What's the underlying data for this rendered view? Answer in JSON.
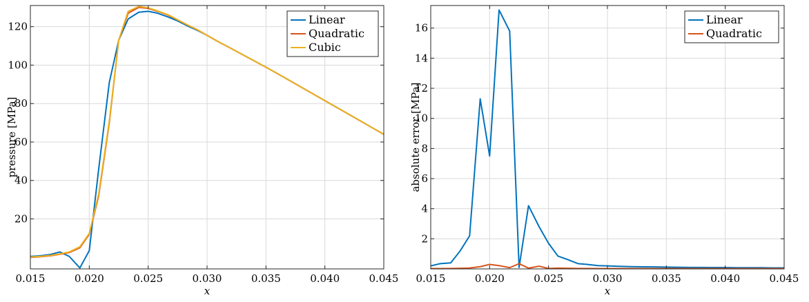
{
  "colors": {
    "linear": "#0072BD",
    "quadratic": "#D95319",
    "cubic": "#EDB120"
  },
  "chart_data": [
    {
      "type": "line",
      "xlabel": "x",
      "ylabel": "pressure [MPa]",
      "xlim": [
        0.015,
        0.045
      ],
      "ylim": [
        -6,
        131
      ],
      "xticks": [
        0.015,
        0.02,
        0.025,
        0.03,
        0.035,
        0.04,
        0.045
      ],
      "xtick_labels": [
        "0.015",
        "0.020",
        "0.025",
        "0.030",
        "0.035",
        "0.040",
        "0.045"
      ],
      "yticks": [
        20,
        40,
        60,
        80,
        100,
        120
      ],
      "ytick_labels": [
        "20",
        "40",
        "60",
        "80",
        "100",
        "120"
      ],
      "grid": true,
      "legend_position": "top-right",
      "series": [
        {
          "name": "Linear",
          "color_key": "linear",
          "x": [
            0.015,
            0.0158,
            0.0167,
            0.0175,
            0.0183,
            0.0192,
            0.02,
            0.0208,
            0.0217,
            0.0225,
            0.0233,
            0.0242,
            0.025,
            0.0258,
            0.0267,
            0.0275,
            0.0283,
            0.0292,
            0.03,
            0.031,
            0.032,
            0.033,
            0.034,
            0.035,
            0.036,
            0.037,
            0.038,
            0.039,
            0.04,
            0.041,
            0.042,
            0.043,
            0.044,
            0.045
          ],
          "values": [
            0.5,
            0.8,
            1.5,
            2.8,
            0.5,
            -5.5,
            3.5,
            46,
            91,
            113,
            124,
            127.5,
            128,
            127,
            125,
            123,
            120.5,
            118,
            115.5,
            112,
            108.8,
            105.5,
            102.2,
            98.9,
            95.5,
            92,
            88.5,
            85,
            81.5,
            78,
            74.5,
            71,
            67.5,
            64
          ]
        },
        {
          "name": "Quadratic",
          "color_key": "quadratic",
          "x": [
            0.015,
            0.0158,
            0.0167,
            0.0175,
            0.0183,
            0.0192,
            0.02,
            0.0208,
            0.0217,
            0.0225,
            0.0233,
            0.0242,
            0.025,
            0.0258,
            0.0267,
            0.0275,
            0.0283,
            0.0292,
            0.03,
            0.031,
            0.032,
            0.033,
            0.034,
            0.035,
            0.036,
            0.037,
            0.038,
            0.039,
            0.04,
            0.041,
            0.042,
            0.043,
            0.044,
            0.045
          ],
          "values": [
            0,
            0.3,
            0.8,
            1.6,
            2.5,
            5,
            12,
            32,
            70,
            113,
            127,
            130,
            129.5,
            128,
            126,
            123.5,
            121,
            118.3,
            115.5,
            112,
            108.8,
            105.5,
            102.2,
            98.9,
            95.5,
            92,
            88.5,
            85,
            81.5,
            78,
            74.5,
            71,
            67.5,
            64
          ]
        },
        {
          "name": "Cubic",
          "color_key": "cubic",
          "x": [
            0.015,
            0.0158,
            0.0167,
            0.0175,
            0.0183,
            0.0192,
            0.02,
            0.0208,
            0.0217,
            0.0225,
            0.0233,
            0.0242,
            0.025,
            0.0258,
            0.0267,
            0.0275,
            0.0283,
            0.0292,
            0.03,
            0.031,
            0.032,
            0.033,
            0.034,
            0.035,
            0.036,
            0.037,
            0.038,
            0.039,
            0.04,
            0.041,
            0.042,
            0.043,
            0.044,
            0.045
          ],
          "values": [
            0.2,
            0.5,
            1,
            1.8,
            2.8,
            5.5,
            12.5,
            33,
            71,
            113,
            128,
            130.5,
            129.8,
            128.2,
            126.2,
            123.6,
            121,
            118.3,
            115.5,
            112,
            108.8,
            105.5,
            102.2,
            98.9,
            95.5,
            92,
            88.5,
            85,
            81.5,
            78,
            74.5,
            71,
            67.5,
            64
          ]
        }
      ]
    },
    {
      "type": "line",
      "xlabel": "x",
      "ylabel": "absolute error [MPa]",
      "xlim": [
        0.015,
        0.045
      ],
      "ylim": [
        0,
        17.5
      ],
      "xticks": [
        0.015,
        0.02,
        0.025,
        0.03,
        0.035,
        0.04,
        0.045
      ],
      "xtick_labels": [
        "0.015",
        "0.020",
        "0.025",
        "0.030",
        "0.035",
        "0.040",
        "0.045"
      ],
      "yticks": [
        2,
        4,
        6,
        8,
        10,
        12,
        14,
        16
      ],
      "ytick_labels": [
        "2",
        "4",
        "6",
        "8",
        "10",
        "12",
        "14",
        "16"
      ],
      "grid": true,
      "legend_position": "top-right",
      "series": [
        {
          "name": "Linear",
          "color_key": "linear",
          "x": [
            0.015,
            0.0158,
            0.0167,
            0.0175,
            0.0183,
            0.0192,
            0.02,
            0.0208,
            0.0217,
            0.0225,
            0.0233,
            0.0242,
            0.025,
            0.0258,
            0.0267,
            0.0275,
            0.0283,
            0.0292,
            0.03,
            0.031,
            0.032,
            0.033,
            0.034,
            0.035,
            0.036,
            0.037,
            0.038,
            0.039,
            0.04,
            0.041,
            0.042,
            0.043,
            0.044,
            0.045
          ],
          "values": [
            0.2,
            0.35,
            0.4,
            1.2,
            2.2,
            11.3,
            7.5,
            17.2,
            15.8,
            0.1,
            4.2,
            2.8,
            1.7,
            0.85,
            0.6,
            0.35,
            0.3,
            0.22,
            0.2,
            0.17,
            0.15,
            0.14,
            0.13,
            0.12,
            0.11,
            0.1,
            0.1,
            0.09,
            0.09,
            0.08,
            0.08,
            0.08,
            0.07,
            0.07
          ]
        },
        {
          "name": "Quadratic",
          "color_key": "quadratic",
          "x": [
            0.015,
            0.0158,
            0.0167,
            0.0175,
            0.0183,
            0.0192,
            0.02,
            0.0208,
            0.0217,
            0.0225,
            0.0233,
            0.0242,
            0.025,
            0.0258,
            0.0267,
            0.0275,
            0.0283,
            0.0292,
            0.03,
            0.031,
            0.032,
            0.033,
            0.034,
            0.035,
            0.036,
            0.037,
            0.038,
            0.039,
            0.04,
            0.041,
            0.042,
            0.043,
            0.044,
            0.045
          ],
          "values": [
            0.02,
            0.02,
            0.03,
            0.04,
            0.06,
            0.15,
            0.3,
            0.22,
            0.08,
            0.35,
            0.05,
            0.18,
            0.03,
            0.05,
            0.04,
            0.03,
            0.03,
            0.02,
            0.02,
            0.02,
            0.02,
            0.02,
            0.02,
            0.02,
            0.02,
            0.02,
            0.02,
            0.02,
            0.02,
            0.02,
            0.02,
            0.02,
            0.02,
            0.02
          ]
        }
      ]
    }
  ]
}
